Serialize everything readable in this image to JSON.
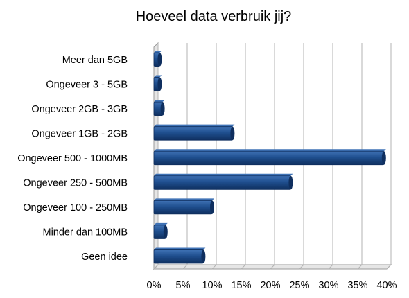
{
  "chart_data": {
    "type": "bar",
    "orientation": "horizontal",
    "title": "Hoeveel data verbruik jij?",
    "xlabel": "",
    "ylabel": "",
    "categories": [
      "Meer dan 5GB",
      "Ongeveer 3 - 5GB",
      "Ongeveer 2GB - 3GB",
      "Ongeveer 1GB - 2GB",
      "Ongeveer 500 - 1000MB",
      "Ongeveer 250 - 500MB",
      "Ongeveer 100 - 250MB",
      "Minder dan 100MB",
      "Geen idee"
    ],
    "values": [
      1.0,
      1.0,
      1.5,
      13.5,
      39.5,
      23.5,
      10.0,
      2.0,
      8.5
    ],
    "xlim": [
      0,
      40
    ],
    "ticks": [
      0,
      5,
      10,
      15,
      20,
      25,
      30,
      35,
      40
    ],
    "tick_labels": [
      "0%",
      "5%",
      "10%",
      "15%",
      "20%",
      "25%",
      "30%",
      "35%",
      "40%"
    ],
    "grid": true,
    "legend": "none",
    "colors": {
      "bar": "#1f4f8f",
      "bar_dark": "#0f2f5f",
      "bar_light": "#3f72b5",
      "grid": "#b3b3b3",
      "wall": "#e6e6e6"
    }
  }
}
